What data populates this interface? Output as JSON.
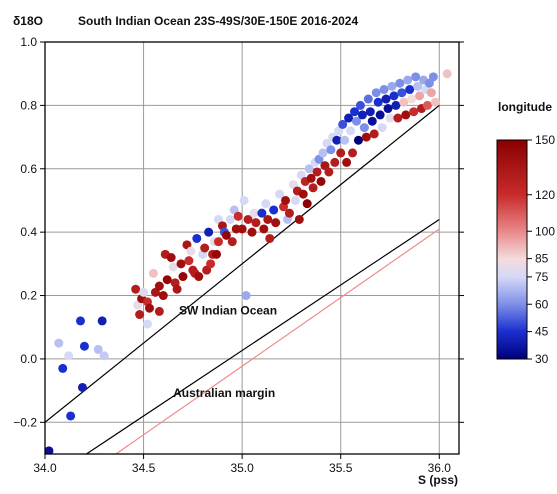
{
  "chart_data": {
    "type": "scatter",
    "title": "South Indian Ocean 23S-49S/30E-150E 2016-2024",
    "xlabel": "S (pss)",
    "ylabel": "δ18O",
    "xlim": [
      34.0,
      36.1
    ],
    "ylim": [
      -0.3,
      1.0
    ],
    "x_ticks": [
      "34.0",
      "34.5",
      "35.0",
      "35.5",
      "36.0"
    ],
    "y_ticks": [
      "−0.2",
      "0.0",
      "0.2",
      "0.4",
      "0.6",
      "0.8",
      "1.0"
    ],
    "grid": true,
    "colorbar": {
      "label": "longitude",
      "min": 30,
      "max": 150,
      "ticks": [
        "30",
        "45",
        "60",
        "75",
        "85",
        "100",
        "120",
        "150"
      ],
      "colors": [
        "#00007a",
        "#1a2fd0",
        "#7e8fe8",
        "#d5d9f6",
        "#f5dcdc",
        "#e8888a",
        "#c92b2b",
        "#8b0000"
      ]
    },
    "lines": [
      {
        "name": "SW Indian Ocean",
        "color": "#000000",
        "points": [
          [
            34.0,
            -0.2
          ],
          [
            36.0,
            0.8
          ]
        ]
      },
      {
        "name": "",
        "color": "#000000",
        "points": [
          [
            34.21,
            -0.3
          ],
          [
            36.0,
            0.44
          ]
        ]
      },
      {
        "name": "Australian margin",
        "color": "#f08a8a",
        "points": [
          [
            34.36,
            -0.3
          ],
          [
            36.0,
            0.41
          ]
        ]
      }
    ],
    "annotations": [
      {
        "text": "SW Indian Ocean",
        "x": 34.68,
        "y": 0.14
      },
      {
        "text": "Australian margin",
        "x": 34.65,
        "y": -0.12
      }
    ],
    "points": [
      [
        34.02,
        -0.29,
        35
      ],
      [
        34.07,
        0.05,
        70
      ],
      [
        34.09,
        -0.03,
        45
      ],
      [
        34.12,
        0.01,
        75
      ],
      [
        34.13,
        -0.18,
        45
      ],
      [
        34.18,
        0.12,
        45
      ],
      [
        34.19,
        -0.09,
        40
      ],
      [
        34.2,
        0.04,
        45
      ],
      [
        34.27,
        0.03,
        70
      ],
      [
        34.29,
        0.12,
        40
      ],
      [
        34.3,
        0.01,
        72
      ],
      [
        34.46,
        0.22,
        130
      ],
      [
        34.47,
        0.17,
        80
      ],
      [
        34.48,
        0.14,
        130
      ],
      [
        34.49,
        0.19,
        140
      ],
      [
        34.5,
        0.21,
        78
      ],
      [
        34.52,
        0.18,
        120
      ],
      [
        34.52,
        0.11,
        75
      ],
      [
        34.53,
        0.16,
        140
      ],
      [
        34.55,
        0.27,
        90
      ],
      [
        34.56,
        0.21,
        135
      ],
      [
        34.58,
        0.23,
        140
      ],
      [
        34.58,
        0.15,
        130
      ],
      [
        34.6,
        0.2,
        140
      ],
      [
        34.61,
        0.33,
        130
      ],
      [
        34.62,
        0.25,
        145
      ],
      [
        34.64,
        0.32,
        140
      ],
      [
        34.65,
        0.29,
        80
      ],
      [
        34.66,
        0.24,
        130
      ],
      [
        34.67,
        0.22,
        135
      ],
      [
        34.69,
        0.3,
        140
      ],
      [
        34.7,
        0.26,
        145
      ],
      [
        34.72,
        0.36,
        135
      ],
      [
        34.73,
        0.31,
        120
      ],
      [
        34.74,
        0.34,
        80
      ],
      [
        34.75,
        0.28,
        130
      ],
      [
        34.76,
        0.27,
        130
      ],
      [
        34.77,
        0.38,
        45
      ],
      [
        34.78,
        0.26,
        140
      ],
      [
        34.8,
        0.33,
        75
      ],
      [
        34.81,
        0.35,
        130
      ],
      [
        34.82,
        0.28,
        130
      ],
      [
        34.83,
        0.4,
        40
      ],
      [
        34.84,
        0.3,
        120
      ],
      [
        34.85,
        0.33,
        130
      ],
      [
        34.86,
        0.37,
        80
      ],
      [
        34.87,
        0.33,
        145
      ],
      [
        34.88,
        0.44,
        75
      ],
      [
        34.88,
        0.37,
        120
      ],
      [
        34.9,
        0.42,
        135
      ],
      [
        34.91,
        0.4,
        50
      ],
      [
        34.92,
        0.39,
        145
      ],
      [
        34.94,
        0.44,
        75
      ],
      [
        34.95,
        0.37,
        130
      ],
      [
        34.96,
        0.47,
        70
      ],
      [
        34.97,
        0.41,
        140
      ],
      [
        34.98,
        0.45,
        120
      ],
      [
        35.0,
        0.41,
        140
      ],
      [
        35.01,
        0.5,
        75
      ],
      [
        35.02,
        0.2,
        65
      ],
      [
        35.03,
        0.44,
        130
      ],
      [
        35.05,
        0.4,
        140
      ],
      [
        35.06,
        0.46,
        80
      ],
      [
        35.07,
        0.43,
        130
      ],
      [
        35.1,
        0.46,
        45
      ],
      [
        35.11,
        0.41,
        140
      ],
      [
        35.12,
        0.49,
        75
      ],
      [
        35.13,
        0.44,
        135
      ],
      [
        35.14,
        0.38,
        130
      ],
      [
        35.16,
        0.47,
        45
      ],
      [
        35.17,
        0.43,
        140
      ],
      [
        35.19,
        0.52,
        75
      ],
      [
        35.21,
        0.48,
        120
      ],
      [
        35.22,
        0.5,
        140
      ],
      [
        35.23,
        0.44,
        70
      ],
      [
        35.24,
        0.46,
        130
      ],
      [
        35.26,
        0.55,
        80
      ],
      [
        35.27,
        0.5,
        75
      ],
      [
        35.28,
        0.53,
        130
      ],
      [
        35.29,
        0.44,
        140
      ],
      [
        35.3,
        0.58,
        75
      ],
      [
        35.31,
        0.52,
        140
      ],
      [
        35.32,
        0.56,
        125
      ],
      [
        35.33,
        0.49,
        150
      ],
      [
        35.34,
        0.6,
        70
      ],
      [
        35.35,
        0.57,
        140
      ],
      [
        35.36,
        0.54,
        130
      ],
      [
        35.37,
        0.62,
        75
      ],
      [
        35.38,
        0.59,
        130
      ],
      [
        35.39,
        0.63,
        60
      ],
      [
        35.4,
        0.56,
        145
      ],
      [
        35.41,
        0.65,
        70
      ],
      [
        35.42,
        0.61,
        135
      ],
      [
        35.43,
        0.68,
        75
      ],
      [
        35.44,
        0.59,
        130
      ],
      [
        35.45,
        0.66,
        60
      ],
      [
        35.46,
        0.7,
        75
      ],
      [
        35.47,
        0.62,
        130
      ],
      [
        35.48,
        0.69,
        40
      ],
      [
        35.49,
        0.72,
        75
      ],
      [
        35.5,
        0.65,
        130
      ],
      [
        35.51,
        0.74,
        50
      ],
      [
        35.52,
        0.69,
        70
      ],
      [
        35.53,
        0.62,
        140
      ],
      [
        35.54,
        0.76,
        40
      ],
      [
        35.55,
        0.72,
        75
      ],
      [
        35.56,
        0.65,
        130
      ],
      [
        35.57,
        0.78,
        45
      ],
      [
        35.58,
        0.75,
        60
      ],
      [
        35.59,
        0.69,
        30
      ],
      [
        35.6,
        0.8,
        50
      ],
      [
        35.61,
        0.77,
        40
      ],
      [
        35.62,
        0.73,
        60
      ],
      [
        35.63,
        0.7,
        140
      ],
      [
        35.64,
        0.82,
        55
      ],
      [
        35.65,
        0.78,
        40
      ],
      [
        35.66,
        0.75,
        35
      ],
      [
        35.67,
        0.71,
        130
      ],
      [
        35.68,
        0.84,
        60
      ],
      [
        35.69,
        0.81,
        45
      ],
      [
        35.7,
        0.77,
        35
      ],
      [
        35.71,
        0.73,
        75
      ],
      [
        35.72,
        0.85,
        60
      ],
      [
        35.73,
        0.82,
        40
      ],
      [
        35.74,
        0.79,
        35
      ],
      [
        35.75,
        0.76,
        80
      ],
      [
        35.76,
        0.86,
        65
      ],
      [
        35.77,
        0.83,
        45
      ],
      [
        35.78,
        0.8,
        40
      ],
      [
        35.79,
        0.76,
        130
      ],
      [
        35.8,
        0.87,
        60
      ],
      [
        35.81,
        0.84,
        50
      ],
      [
        35.82,
        0.81,
        90
      ],
      [
        35.83,
        0.77,
        140
      ],
      [
        35.84,
        0.88,
        65
      ],
      [
        35.85,
        0.85,
        45
      ],
      [
        35.86,
        0.82,
        85
      ],
      [
        35.87,
        0.78,
        120
      ],
      [
        35.88,
        0.89,
        60
      ],
      [
        35.89,
        0.86,
        70
      ],
      [
        35.9,
        0.83,
        95
      ],
      [
        35.91,
        0.79,
        130
      ],
      [
        35.92,
        0.88,
        65
      ],
      [
        35.93,
        0.85,
        75
      ],
      [
        35.94,
        0.8,
        110
      ],
      [
        35.95,
        0.87,
        60
      ],
      [
        35.96,
        0.84,
        95
      ],
      [
        35.97,
        0.89,
        60
      ],
      [
        35.98,
        0.81,
        90
      ],
      [
        36.04,
        0.9,
        90
      ]
    ]
  }
}
